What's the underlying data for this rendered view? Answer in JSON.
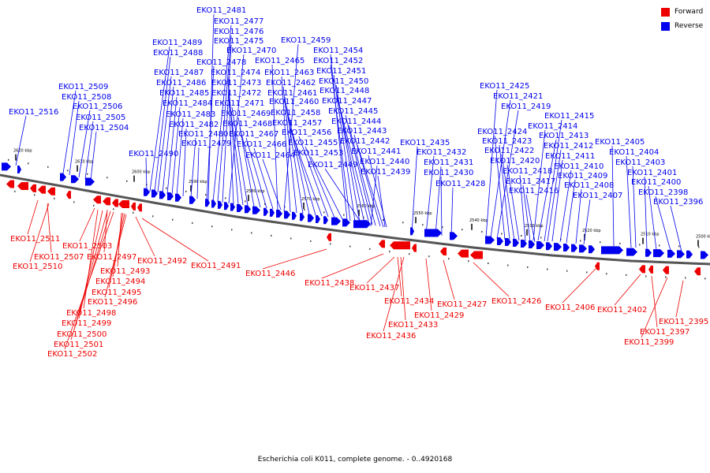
{
  "caption": "Escherichia coli K011, complete genome. - 0..4920168",
  "legend": [
    {
      "label": "Forward",
      "color": "#ee0000"
    },
    {
      "label": "Reverse",
      "color": "#0000ee"
    }
  ],
  "colors": {
    "forward": "#ee0000",
    "reverse": "#0000ee",
    "axis": "#555555"
  },
  "scale_labels": [
    "2620 kbp",
    "2610 kbp",
    "2600 kbp",
    "2590 kbp",
    "2580 kbp",
    "2570 kbp",
    "2560 kbp",
    "2550 kbp",
    "2540 kbp",
    "2530 kbp",
    "2520 kbp",
    "2510 kbp",
    "2500 kbp"
  ],
  "reverse_labels": [
    "EKO11_2516",
    "EKO11_2509",
    "EKO11_2508",
    "EKO11_2506",
    "EKO11_2505",
    "EKO11_2504",
    "EKO11_2489",
    "EKO11_2488",
    "EKO11_2487",
    "EKO11_2486",
    "EKO11_2485",
    "EKO11_2484",
    "EKO11_2483",
    "EKO11_2482",
    "EKO11_2480",
    "EKO11_2479",
    "EKO11_2490",
    "EKO11_2481",
    "EKO11_2477",
    "EKO11_2476",
    "EKO11_2475",
    "EKO11_2470",
    "EKO11_2478",
    "EKO11_2474",
    "EKO11_2473",
    "EKO11_2472",
    "EKO11_2471",
    "EKO11_2469",
    "EKO11_2468",
    "EKO11_2467",
    "EKO11_2466",
    "EKO11_2464",
    "EKO11_2459",
    "EKO11_2465",
    "EKO11_2463",
    "EKO11_2462",
    "EKO11_2461",
    "EKO11_2460",
    "EKO11_2458",
    "EKO11_2457",
    "EKO11_2456",
    "EKO11_2455",
    "EKO11_2453",
    "EKO11_2454",
    "EKO11_2452",
    "EKO11_2451",
    "EKO11_2450",
    "EKO11_2448",
    "EKO11_2447",
    "EKO11_2445",
    "EKO11_2444",
    "EKO11_2443",
    "EKO11_2442",
    "EKO11_2441",
    "EKO11_2440",
    "EKO11_2439",
    "EKO11_2449",
    "EKO11_2435",
    "EKO11_2432",
    "EKO11_2431",
    "EKO11_2430",
    "EKO11_2428",
    "EKO11_2425",
    "EKO11_2421",
    "EKO11_2419",
    "EKO11_2415",
    "EKO11_2414",
    "EKO11_2424",
    "EKO11_2423",
    "EKO11_2422",
    "EKO11_2413",
    "EKO11_2412",
    "EKO11_2420",
    "EKO11_2411",
    "EKO11_2418",
    "EKO11_2410",
    "EKO11_2417",
    "EKO11_2409",
    "EKO11_2416",
    "EKO11_2408",
    "EKO11_2407",
    "EKO11_2405",
    "EKO11_2404",
    "EKO11_2403",
    "EKO11_2401",
    "EKO11_2400",
    "EKO11_2398",
    "EKO11_2396"
  ],
  "forward_labels": [
    "EKO11_2511",
    "EKO11_2503",
    "EKO11_2507",
    "EKO11_2497",
    "EKO11_2510",
    "EKO11_2493",
    "EKO11_2494",
    "EKO11_2495",
    "EKO11_2496",
    "EKO11_2498",
    "EKO11_2499",
    "EKO11_2500",
    "EKO11_2501",
    "EKO11_2502",
    "EKO11_2492",
    "EKO11_2491",
    "EKO11_2446",
    "EKO11_2438",
    "EKO11_2437",
    "EKO11_2434",
    "EKO11_2433",
    "EKO11_2436",
    "EKO11_2429",
    "EKO11_2427",
    "EKO11_2426",
    "EKO11_2406",
    "EKO11_2402",
    "EKO11_2397",
    "EKO11_2399",
    "EKO11_2395"
  ]
}
